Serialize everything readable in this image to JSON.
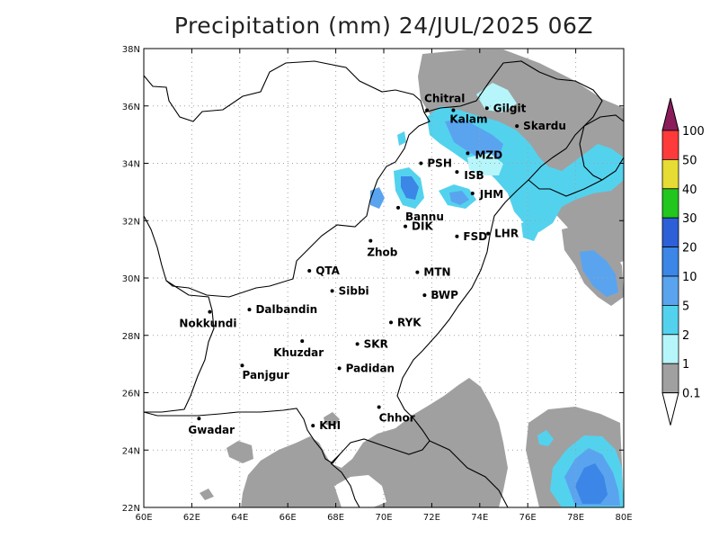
{
  "title": "Precipitation (mm) 24/JUL/2025 06Z",
  "map": {
    "x_ticks": [
      "60E",
      "62E",
      "64E",
      "66E",
      "68E",
      "70E",
      "72E",
      "74E",
      "76E",
      "78E",
      "80E"
    ],
    "y_ticks": [
      "22N",
      "24N",
      "26N",
      "28N",
      "30N",
      "32N",
      "34N",
      "36N",
      "38N"
    ],
    "lon_range": [
      60,
      80
    ],
    "lat_range": [
      22,
      38
    ],
    "grid": "dotted",
    "cities": [
      {
        "name": "Chitral",
        "lon": 71.8,
        "lat": 35.85
      },
      {
        "name": "Gilgit",
        "lon": 74.3,
        "lat": 35.92
      },
      {
        "name": "Kalam",
        "lon": 72.9,
        "lat": 35.85
      },
      {
        "name": "Skardu",
        "lon": 75.55,
        "lat": 35.3
      },
      {
        "name": "MZD",
        "lon": 73.5,
        "lat": 34.35
      },
      {
        "name": "PSH",
        "lon": 71.55,
        "lat": 34.0
      },
      {
        "name": "ISB",
        "lon": 73.05,
        "lat": 33.7
      },
      {
        "name": "JHM",
        "lon": 73.7,
        "lat": 32.95
      },
      {
        "name": "Bannu",
        "lon": 70.6,
        "lat": 32.45
      },
      {
        "name": "DIK",
        "lon": 70.9,
        "lat": 31.8
      },
      {
        "name": "FSD",
        "lon": 73.05,
        "lat": 31.45
      },
      {
        "name": "LHR",
        "lon": 74.35,
        "lat": 31.55
      },
      {
        "name": "Zhob",
        "lon": 69.45,
        "lat": 31.3
      },
      {
        "name": "QTA",
        "lon": 66.9,
        "lat": 30.25
      },
      {
        "name": "MTN",
        "lon": 71.4,
        "lat": 30.2
      },
      {
        "name": "Sibbi",
        "lon": 67.85,
        "lat": 29.55
      },
      {
        "name": "BWP",
        "lon": 71.7,
        "lat": 29.4
      },
      {
        "name": "Dalbandin",
        "lon": 64.4,
        "lat": 28.9
      },
      {
        "name": "Nokkundi",
        "lon": 62.75,
        "lat": 28.82
      },
      {
        "name": "RYK",
        "lon": 70.3,
        "lat": 28.45
      },
      {
        "name": "Khuzdar",
        "lon": 66.6,
        "lat": 27.8
      },
      {
        "name": "SKR",
        "lon": 68.9,
        "lat": 27.7
      },
      {
        "name": "Panjgur",
        "lon": 64.1,
        "lat": 26.95
      },
      {
        "name": "Padidan",
        "lon": 68.15,
        "lat": 26.85
      },
      {
        "name": "Chhor",
        "lon": 69.8,
        "lat": 25.5
      },
      {
        "name": "Gwadar",
        "lon": 62.3,
        "lat": 25.1
      },
      {
        "name": "KHI",
        "lon": 67.05,
        "lat": 24.85
      }
    ]
  },
  "colorbar": {
    "labels": [
      "100",
      "50",
      "40",
      "30",
      "20",
      "10",
      "5",
      "2",
      "1",
      "0.1"
    ],
    "colors": [
      "#ff3a3a",
      "#e6dc33",
      "#22c61d",
      "#2d5fd6",
      "#3b86e6",
      "#5aa4ef",
      "#53d2ee",
      "#b6f6fa",
      "#a0a0a0"
    ],
    "top_arrow_color": "#8a1c5c"
  }
}
